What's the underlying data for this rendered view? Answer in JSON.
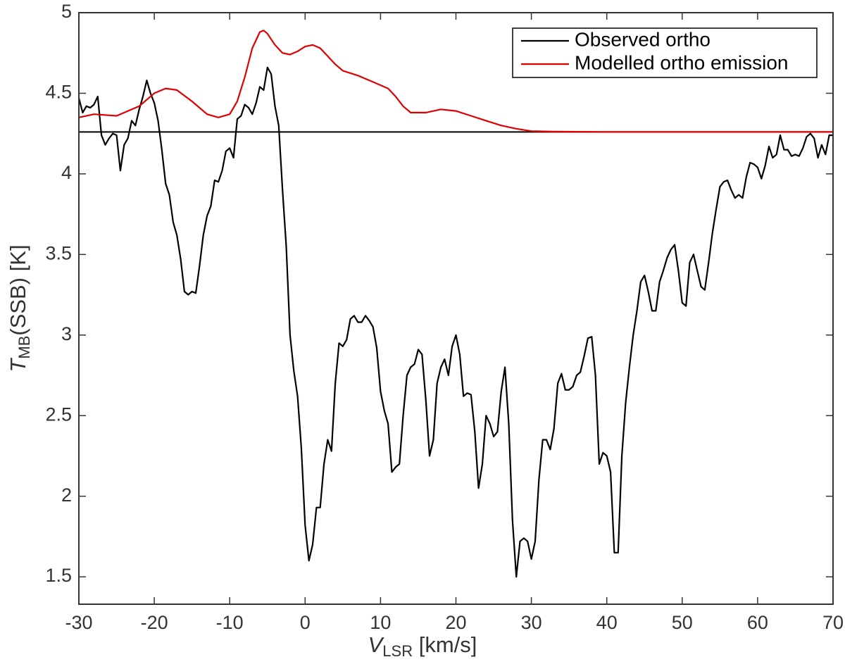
{
  "chart_data": {
    "type": "line",
    "x_label": {
      "main": "V",
      "sub": "LSR",
      "rest": " [km/s]"
    },
    "y_label": {
      "main": "T",
      "sub": "MB",
      "rest": "(SSB) [K]"
    },
    "xlim": [
      -30,
      70
    ],
    "ylim": [
      1.33,
      5
    ],
    "xticks": [
      -30,
      -20,
      -10,
      0,
      10,
      20,
      30,
      40,
      50,
      60,
      70
    ],
    "yticks": [
      1.5,
      2,
      2.5,
      3,
      3.5,
      4,
      4.5,
      5
    ],
    "hline": 4.26,
    "hline_color": "#000000",
    "legend": "upper right",
    "grid": false,
    "series": [
      {
        "name": "Observed ortho",
        "color": "#000000",
        "x": [
          -30,
          -29.5,
          -29,
          -28.5,
          -28,
          -27.5,
          -27,
          -26.5,
          -26,
          -25.5,
          -25,
          -24.5,
          -24,
          -23.5,
          -23,
          -22.5,
          -22,
          -21.5,
          -21,
          -20.5,
          -20,
          -19.5,
          -19,
          -18.5,
          -18,
          -17.5,
          -17,
          -16.5,
          -16,
          -15.5,
          -15,
          -14.5,
          -14,
          -13.5,
          -13,
          -12.5,
          -12,
          -11.5,
          -11,
          -10.5,
          -10,
          -9.5,
          -9,
          -8.5,
          -8,
          -7.5,
          -7,
          -6.5,
          -6,
          -5.5,
          -5,
          -4.5,
          -4,
          -3.5,
          -3,
          -2.5,
          -2,
          -1.5,
          -1,
          -0.5,
          0,
          0.5,
          1,
          1.5,
          2,
          2.5,
          3,
          3.5,
          4,
          4.5,
          5,
          5.5,
          6,
          6.5,
          7,
          7.5,
          8,
          8.5,
          9,
          9.5,
          10,
          10.5,
          11,
          11.5,
          12,
          12.5,
          13,
          13.5,
          14,
          14.5,
          15,
          15.5,
          16,
          16.5,
          17,
          17.5,
          18,
          18.5,
          19,
          19.5,
          20,
          20.5,
          21,
          21.5,
          22,
          22.5,
          23,
          23.5,
          24,
          24.5,
          25,
          25.5,
          26,
          26.5,
          27,
          27.5,
          28,
          28.5,
          29,
          29.5,
          30,
          30.5,
          31,
          31.5,
          32,
          32.5,
          33,
          33.5,
          34,
          34.5,
          35,
          35.5,
          36,
          36.5,
          37,
          37.5,
          38,
          38.5,
          39,
          39.5,
          40,
          40.5,
          41,
          41.5,
          42,
          42.5,
          43,
          43.5,
          44,
          44.5,
          45,
          45.5,
          46,
          46.5,
          47,
          47.5,
          48,
          48.5,
          49,
          49.5,
          50,
          50.5,
          51,
          51.5,
          52,
          52.5,
          53,
          53.5,
          54,
          54.5,
          55,
          55.5,
          56,
          56.5,
          57,
          57.5,
          58,
          58.5,
          59,
          59.5,
          60,
          60.5,
          61,
          61.5,
          62,
          62.5,
          63,
          63.5,
          64,
          64.5,
          65,
          65.5,
          66,
          66.5,
          67,
          67.5,
          68,
          68.5,
          69,
          69.5,
          70
        ],
        "values": [
          4.47,
          4.38,
          4.42,
          4.41,
          4.43,
          4.48,
          4.24,
          4.18,
          4.22,
          4.25,
          4.24,
          4.02,
          4.18,
          4.22,
          4.33,
          4.3,
          4.4,
          4.48,
          4.58,
          4.5,
          4.44,
          4.33,
          4.15,
          3.94,
          3.87,
          3.7,
          3.62,
          3.47,
          3.27,
          3.25,
          3.27,
          3.26,
          3.43,
          3.62,
          3.74,
          3.8,
          3.96,
          3.95,
          4.02,
          4.14,
          4.16,
          4.1,
          4.34,
          4.36,
          4.43,
          4.41,
          4.37,
          4.44,
          4.54,
          4.52,
          4.66,
          4.62,
          4.42,
          4.3,
          3.9,
          3.55,
          3.0,
          2.78,
          2.62,
          2.3,
          1.82,
          1.6,
          1.7,
          1.93,
          1.93,
          2.2,
          2.35,
          2.28,
          2.7,
          2.95,
          2.93,
          2.97,
          3.1,
          3.12,
          3.08,
          3.08,
          3.12,
          3.09,
          3.05,
          2.92,
          2.65,
          2.53,
          2.45,
          2.15,
          2.18,
          2.2,
          2.5,
          2.75,
          2.8,
          2.82,
          2.91,
          2.88,
          2.6,
          2.25,
          2.35,
          2.7,
          2.8,
          2.85,
          2.75,
          2.93,
          3.0,
          2.88,
          2.62,
          2.64,
          2.63,
          2.4,
          2.05,
          2.2,
          2.5,
          2.45,
          2.37,
          2.4,
          2.65,
          2.8,
          2.45,
          1.85,
          1.5,
          1.72,
          1.74,
          1.72,
          1.61,
          1.72,
          2.1,
          2.35,
          2.35,
          2.29,
          2.42,
          2.7,
          2.76,
          2.66,
          2.66,
          2.68,
          2.75,
          2.77,
          2.87,
          2.98,
          2.99,
          2.75,
          2.2,
          2.27,
          2.25,
          2.15,
          1.65,
          1.65,
          2.25,
          2.58,
          2.8,
          3.0,
          3.15,
          3.33,
          3.37,
          3.27,
          3.15,
          3.15,
          3.33,
          3.4,
          3.48,
          3.53,
          3.56,
          3.4,
          3.2,
          3.18,
          3.45,
          3.5,
          3.4,
          3.3,
          3.28,
          3.45,
          3.63,
          3.78,
          3.92,
          3.95,
          3.96,
          3.9,
          3.85,
          3.87,
          3.85,
          3.98,
          4.07,
          4.06,
          4.04,
          3.97,
          4.05,
          4.17,
          4.1,
          4.12,
          4.24,
          4.15,
          4.15,
          4.11,
          4.12,
          4.11,
          4.16,
          4.23,
          4.25,
          4.22,
          4.1,
          4.18,
          4.12,
          4.24,
          4.24
        ]
      },
      {
        "name": "Modelled ortho emission",
        "color": "#e00000",
        "x": [
          -30,
          -28,
          -25,
          -22,
          -20,
          -18.5,
          -17,
          -15,
          -13,
          -11.5,
          -10,
          -9,
          -8,
          -7,
          -6,
          -5.5,
          -5,
          -4,
          -3,
          -2,
          -1,
          0,
          1,
          2,
          3,
          4,
          5,
          7,
          9,
          11,
          12,
          13,
          14,
          15,
          16,
          18,
          20,
          22,
          24,
          26,
          28,
          30,
          33,
          40,
          50,
          60,
          70
        ],
        "values": [
          4.35,
          4.37,
          4.36,
          4.42,
          4.5,
          4.53,
          4.52,
          4.45,
          4.37,
          4.35,
          4.37,
          4.45,
          4.6,
          4.78,
          4.88,
          4.89,
          4.87,
          4.8,
          4.75,
          4.74,
          4.76,
          4.79,
          4.8,
          4.78,
          4.73,
          4.68,
          4.64,
          4.61,
          4.57,
          4.53,
          4.48,
          4.42,
          4.38,
          4.38,
          4.38,
          4.4,
          4.39,
          4.36,
          4.33,
          4.3,
          4.28,
          4.265,
          4.262,
          4.26,
          4.26,
          4.26,
          4.26
        ]
      }
    ]
  }
}
